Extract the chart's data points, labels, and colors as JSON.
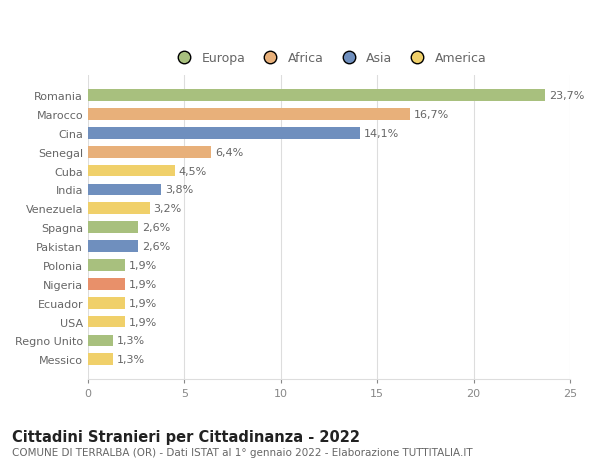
{
  "countries": [
    "Romania",
    "Marocco",
    "Cina",
    "Senegal",
    "Cuba",
    "India",
    "Venezuela",
    "Spagna",
    "Pakistan",
    "Polonia",
    "Nigeria",
    "Ecuador",
    "USA",
    "Regno Unito",
    "Messico"
  ],
  "values": [
    23.7,
    16.7,
    14.1,
    6.4,
    4.5,
    3.8,
    3.2,
    2.6,
    2.6,
    1.9,
    1.9,
    1.9,
    1.9,
    1.3,
    1.3
  ],
  "labels": [
    "23,7%",
    "16,7%",
    "14,1%",
    "6,4%",
    "4,5%",
    "3,8%",
    "3,2%",
    "2,6%",
    "2,6%",
    "1,9%",
    "1,9%",
    "1,9%",
    "1,9%",
    "1,3%",
    "1,3%"
  ],
  "colors": [
    "#a8c07e",
    "#e8b07a",
    "#6f8fbe",
    "#e8b07a",
    "#f0d06a",
    "#6f8fbe",
    "#f0d06a",
    "#a8c07e",
    "#6f8fbe",
    "#a8c07e",
    "#e8906a",
    "#f0d06a",
    "#f0d06a",
    "#a8c07e",
    "#f0d06a"
  ],
  "legend_items": [
    {
      "label": "Europa",
      "color": "#a8c07e"
    },
    {
      "label": "Africa",
      "color": "#e8b07a"
    },
    {
      "label": "Asia",
      "color": "#6f8fbe"
    },
    {
      "label": "America",
      "color": "#f0d06a"
    }
  ],
  "title": "Cittadini Stranieri per Cittadinanza - 2022",
  "subtitle": "COMUNE DI TERRALBA (OR) - Dati ISTAT al 1° gennaio 2022 - Elaborazione TUTTITALIA.IT",
  "xlim": [
    0,
    25
  ],
  "xticks": [
    0,
    5,
    10,
    15,
    20,
    25
  ],
  "bg_color": "#ffffff",
  "grid_color": "#dddddd",
  "bar_height": 0.62,
  "label_fontsize": 8,
  "tick_fontsize": 8,
  "title_fontsize": 10.5,
  "subtitle_fontsize": 7.5,
  "legend_fontsize": 9
}
